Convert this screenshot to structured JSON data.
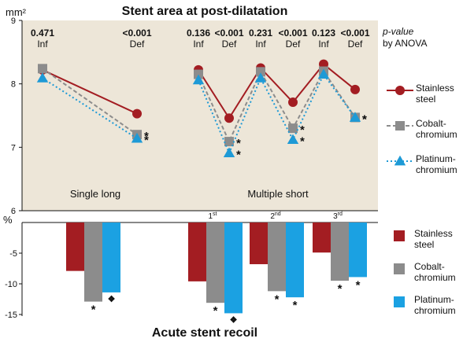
{
  "chart_data": [
    {
      "type": "line",
      "title": "Stent area at post-dilatation",
      "ylabel": "mm²",
      "ylim": [
        6,
        9
      ],
      "yticks": [
        6,
        7,
        8,
        9
      ],
      "background": "#ede6d8",
      "group_labels": [
        "Single long",
        "Multiple short"
      ],
      "position_labels": [
        {
          "base": "1",
          "sup": "st"
        },
        {
          "base": "2",
          "sup": "nd"
        },
        {
          "base": "3",
          "sup": "rd"
        }
      ],
      "p_header": [
        "p-value",
        "by ANOVA"
      ],
      "p_values": [
        {
          "value": "0.471",
          "label": "Inf"
        },
        {
          "value": "<0.001",
          "label": "Def"
        },
        {
          "value": "0.136",
          "label": "Inf"
        },
        {
          "value": "<0.001",
          "label": "Def"
        },
        {
          "value": "0.231",
          "label": "Inf"
        },
        {
          "value": "<0.001",
          "label": "Def"
        },
        {
          "value": "0.123",
          "label": "Inf"
        },
        {
          "value": "<0.001",
          "label": "Def"
        }
      ],
      "categories": [
        "Single long Inf",
        "Single long Def",
        "1st Inf",
        "1st Def",
        "2nd Inf",
        "2nd Def",
        "3rd Inf",
        "3rd Def"
      ],
      "segments": [
        [
          0,
          1
        ],
        [
          2,
          3,
          4,
          5,
          6,
          7
        ]
      ],
      "series": [
        {
          "name": "Stainless steel",
          "legend_lines": [
            "Stainless",
            "steel"
          ],
          "color": "#a31d22",
          "marker": "circle",
          "dash": "solid",
          "values": [
            8.22,
            7.53,
            8.22,
            7.46,
            8.25,
            7.71,
            8.31,
            7.91
          ],
          "marks": [
            "",
            "",
            "",
            "",
            "",
            "",
            "",
            ""
          ]
        },
        {
          "name": "Cobalt-chromium",
          "legend_lines": [
            "Cobalt-",
            "chromium"
          ],
          "color": "#8c8c8c",
          "marker": "square",
          "dash": "dashed",
          "values": [
            8.24,
            7.2,
            8.15,
            7.09,
            8.19,
            7.3,
            8.2,
            7.47
          ],
          "marks": [
            "",
            "*",
            "",
            "*",
            "",
            "*",
            "",
            "*"
          ]
        },
        {
          "name": "Platinum-chromium",
          "legend_lines": [
            "Platinum-",
            "chromium"
          ],
          "color": "#1e9ad6",
          "marker": "triangle",
          "dash": "dotted",
          "values": [
            8.09,
            7.14,
            8.06,
            6.91,
            8.09,
            7.12,
            8.15,
            7.47
          ],
          "marks": [
            "",
            "*",
            "",
            "*",
            "",
            "*",
            "",
            "*"
          ]
        }
      ]
    },
    {
      "type": "bar",
      "title": "Acute stent recoil",
      "ylabel": "%",
      "ylim": [
        -15,
        0
      ],
      "yticks": [
        0,
        -5,
        -10,
        -15
      ],
      "categories": [
        "Single long",
        "1st",
        "2nd",
        "3rd"
      ],
      "series": [
        {
          "name": "Stainless steel",
          "legend_lines": [
            "Stainless",
            "steel"
          ],
          "color": "#a31d22",
          "values": [
            -7.9,
            -9.6,
            -6.8,
            -4.9
          ],
          "marks": [
            "",
            "",
            "",
            ""
          ]
        },
        {
          "name": "Cobalt-chromium",
          "legend_lines": [
            "Cobalt-",
            "chromium"
          ],
          "color": "#8c8c8c",
          "values": [
            -12.9,
            -13.1,
            -11.2,
            -9.5
          ],
          "marks": [
            "*",
            "*",
            "*",
            "*"
          ]
        },
        {
          "name": "Platinum-chromium",
          "legend_lines": [
            "Platinum-",
            "chromium"
          ],
          "color": "#1ba1e2",
          "values": [
            -11.4,
            -14.8,
            -12.2,
            -8.9
          ],
          "marks": [
            "❖",
            "❖",
            "*",
            "*"
          ]
        }
      ]
    }
  ]
}
